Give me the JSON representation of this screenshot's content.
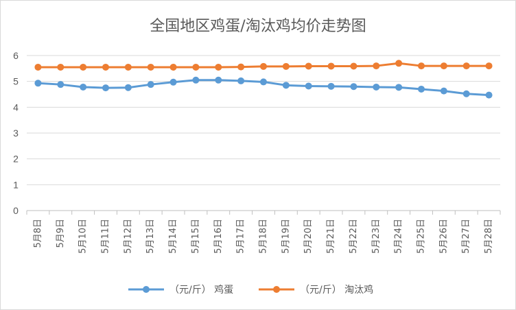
{
  "chart_data": {
    "type": "line",
    "title": "全国地区鸡蛋/淘汰鸡均价走势图",
    "xlabel": "",
    "ylabel": "",
    "ylim": [
      0,
      6
    ],
    "yticks": [
      0,
      1,
      2,
      3,
      4,
      5,
      6
    ],
    "grid": true,
    "legend": "bottom",
    "categories": [
      "5月8日",
      "5月9日",
      "5月10日",
      "5月11日",
      "5月12日",
      "5月13日",
      "5月14日",
      "5月15日",
      "5月16日",
      "5月17日",
      "5月18日",
      "5月19日",
      "5月20日",
      "5月21日",
      "5月22日",
      "5月23日",
      "5月24日",
      "5月25日",
      "5月26日",
      "5月27日",
      "5月28日"
    ],
    "series": [
      {
        "name": "（元/斤） 鸡蛋",
        "color": "#5b9bd5",
        "values": [
          4.93,
          4.88,
          4.78,
          4.75,
          4.76,
          4.88,
          4.97,
          5.05,
          5.05,
          5.02,
          4.98,
          4.85,
          4.82,
          4.81,
          4.8,
          4.78,
          4.77,
          4.7,
          4.63,
          4.52,
          4.47
        ]
      },
      {
        "name": "（元/斤） 淘汰鸡",
        "color": "#ed7d31",
        "values": [
          5.55,
          5.55,
          5.55,
          5.55,
          5.55,
          5.55,
          5.55,
          5.55,
          5.55,
          5.56,
          5.58,
          5.58,
          5.59,
          5.59,
          5.59,
          5.6,
          5.7,
          5.6,
          5.6,
          5.6,
          5.6
        ]
      }
    ]
  }
}
